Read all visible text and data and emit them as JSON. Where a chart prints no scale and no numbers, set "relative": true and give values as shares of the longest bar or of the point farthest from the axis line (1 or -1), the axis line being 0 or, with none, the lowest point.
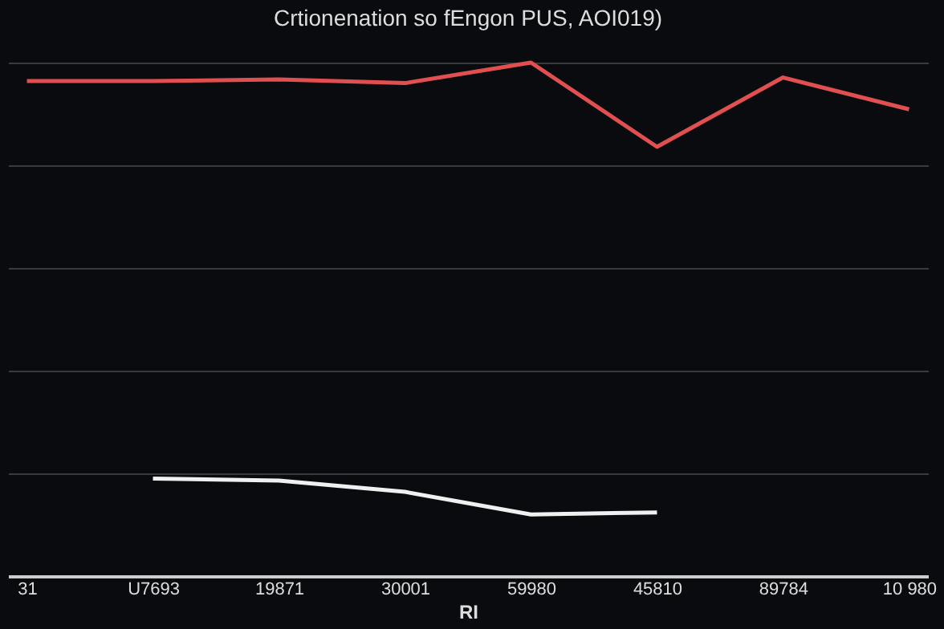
{
  "chart_data": {
    "type": "line",
    "title": "Crtionenation so fEngon PUS, AOI019)",
    "xlabel": "RI",
    "relative": true,
    "grid": "y",
    "categories": [
      "31",
      "U7693",
      "19871",
      "30001",
      "59980",
      "45810",
      "89784",
      "10 980"
    ],
    "series": [
      {
        "color": "#e05050",
        "values": [
          0.964,
          0.964,
          0.967,
          0.96,
          1.0,
          0.836,
          0.971,
          0.909
        ]
      },
      {
        "color": "#f0f0f0",
        "values": [
          null,
          0.19,
          0.186,
          0.164,
          0.12,
          0.124,
          null,
          null
        ]
      }
    ]
  }
}
